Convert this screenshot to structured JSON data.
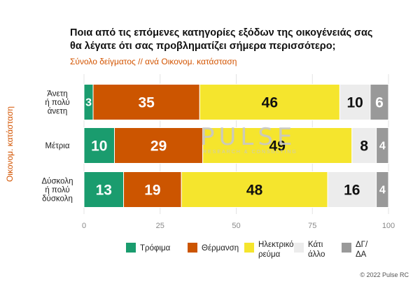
{
  "header": {
    "title_line1": "Ποια από τις επόμενες κατηγορίες εξόδων της οικογένειάς σας",
    "title_line2": "θα λέγατε ότι σας προβληματίζει σήμερα περισσότερο;",
    "subtitle": "Σύνολο δείγματος // ανά Οικονομ. κατάσταση"
  },
  "watermark": {
    "main": "PULSE",
    "sub": "RESEARCH & CONSULTING"
  },
  "copyright": "© 2022 Pulse RC",
  "chart_data": {
    "type": "bar",
    "orientation": "horizontal",
    "stacked": true,
    "title": "Ποια από τις επόμενες κατηγορίες εξόδων της οικογένειάς σας θα λέγατε ότι σας προβληματίζει σήμερα περισσότερο;",
    "subtitle": "Σύνολο δείγματος // ανά Οικονομ. κατάσταση",
    "ylabel": "Οικονομ. κατάσταση",
    "xlabel": "",
    "xlim": [
      0,
      100
    ],
    "xticks": [
      0,
      25,
      50,
      75,
      100
    ],
    "categories": [
      [
        "Άνετη",
        "ή πολύ",
        "άνετη"
      ],
      [
        "Μέτρια"
      ],
      [
        "Δύσκολη",
        "ή πολύ",
        "δύσκολη"
      ]
    ],
    "series": [
      {
        "name": "Τρόφιμα",
        "legend_lines": [
          "Τρόφιμα"
        ],
        "color": "#1a9c6e",
        "label_color": "#ffffff",
        "values": [
          3,
          10,
          13
        ]
      },
      {
        "name": "Θέρμανση",
        "legend_lines": [
          "Θέρμανση"
        ],
        "color": "#cc5500",
        "label_color": "#ffffff",
        "values": [
          35,
          29,
          19
        ]
      },
      {
        "name": "Ηλεκτρικό ρεύμα",
        "legend_lines": [
          "Ηλεκτρικό",
          "ρεύμα"
        ],
        "color": "#f5e52d",
        "label_color": "#111111",
        "values": [
          46,
          49,
          48
        ]
      },
      {
        "name": "Κάτι άλλο",
        "legend_lines": [
          "Κάτι",
          "άλλο"
        ],
        "color": "#ececec",
        "label_color": "#111111",
        "values": [
          10,
          8,
          16
        ]
      },
      {
        "name": "ΔΓ/ΔΑ",
        "legend_lines": [
          "ΔΓ/",
          "ΔΑ"
        ],
        "color": "#999999",
        "label_color": "#ffffff",
        "values": [
          6,
          4,
          4
        ]
      }
    ],
    "legend_position": "bottom"
  }
}
